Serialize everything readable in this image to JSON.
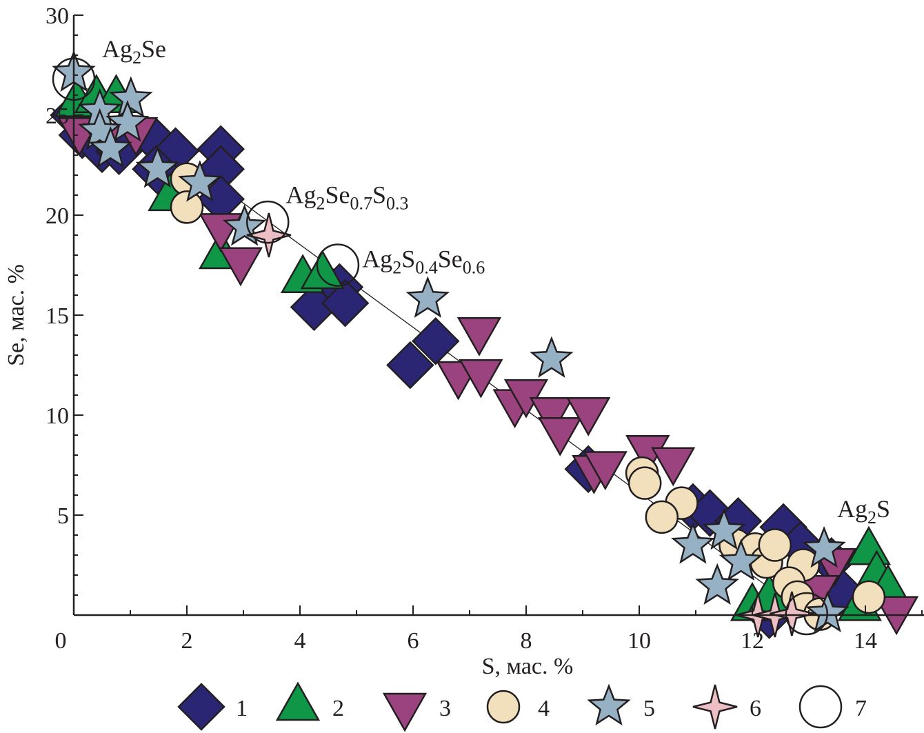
{
  "chart_data": {
    "type": "scatter",
    "title": "",
    "xlabel": "S, мас. %",
    "ylabel": "Se, мас. %",
    "xlim": [
      0,
      15
    ],
    "ylim": [
      0,
      30
    ],
    "xticks": [
      0,
      2,
      4,
      6,
      8,
      10,
      12,
      14
    ],
    "yticks": [
      5,
      10,
      15,
      20,
      25,
      30
    ],
    "grid": false,
    "legend_position": "bottom",
    "trend_line": {
      "from": [
        0,
        26.8
      ],
      "to": [
        12.96,
        0
      ]
    },
    "annotations": [
      {
        "text": "Ag",
        "sub1": "2",
        "text2": "Se",
        "sub2": "",
        "text3": "",
        "sub3": "",
        "at": [
          0.5,
          27.9
        ]
      },
      {
        "text": "Ag",
        "sub1": "2",
        "text2": "Se",
        "sub2": "0.7",
        "text3": "S",
        "sub3": "0.3",
        "at": [
          3.75,
          20.6
        ]
      },
      {
        "text": "Ag",
        "sub1": "2",
        "text2": "S",
        "sub2": "0.4",
        "text3": "Se",
        "sub3": "0.6",
        "at": [
          5.1,
          17.4
        ]
      },
      {
        "text": "Ag",
        "sub1": "2",
        "text2": "S",
        "sub2": "",
        "text3": "",
        "sub3": "",
        "at": [
          13.5,
          4.9
        ]
      }
    ],
    "series": [
      {
        "name": "1",
        "marker": "diamond",
        "color": "#2b2673",
        "points": [
          [
            0,
            25
          ],
          [
            0.15,
            24
          ],
          [
            0.5,
            23.3
          ],
          [
            0.8,
            23.2
          ],
          [
            1.45,
            23.7
          ],
          [
            1.8,
            23.2
          ],
          [
            1.45,
            22.3
          ],
          [
            1.7,
            21.6
          ],
          [
            2.6,
            23.3
          ],
          [
            2.6,
            22.3
          ],
          [
            2.6,
            20.8
          ],
          [
            4.7,
            16.4
          ],
          [
            4.25,
            15.4
          ],
          [
            4.8,
            15.6
          ],
          [
            5.95,
            12.5
          ],
          [
            6.4,
            13.7
          ],
          [
            9.1,
            7.3
          ],
          [
            10.95,
            5.4
          ],
          [
            11.25,
            5.1
          ],
          [
            11.75,
            4.7
          ],
          [
            12.55,
            4.4
          ],
          [
            12.85,
            3.5
          ],
          [
            13.4,
            2.7
          ],
          [
            13.6,
            1.1
          ],
          [
            12.3,
            0
          ]
        ]
      },
      {
        "name": "2",
        "marker": "triangle-up",
        "color": "#0f9647",
        "points": [
          [
            0.05,
            25.6
          ],
          [
            0.4,
            25.8
          ],
          [
            0.75,
            25.8
          ],
          [
            1.7,
            20.9
          ],
          [
            2.6,
            18
          ],
          [
            4.05,
            16.8
          ],
          [
            4.4,
            17
          ],
          [
            12,
            0.4
          ],
          [
            12.3,
            0.8
          ],
          [
            14.06,
            3.2
          ],
          [
            14.2,
            2
          ],
          [
            14.4,
            1.3
          ],
          [
            13.9,
            0.4
          ]
        ]
      },
      {
        "name": "3",
        "marker": "triangle-down",
        "color": "#9b437f",
        "points": [
          [
            0.1,
            24.2
          ],
          [
            0.55,
            23.9
          ],
          [
            1.1,
            24.2
          ],
          [
            2.6,
            19.4
          ],
          [
            2.95,
            17.7
          ],
          [
            7.17,
            14.2
          ],
          [
            6.8,
            12
          ],
          [
            7.2,
            12.1
          ],
          [
            7.8,
            10.6
          ],
          [
            8,
            11.1
          ],
          [
            8.45,
            10.2
          ],
          [
            8.6,
            9.2
          ],
          [
            9.1,
            10.2
          ],
          [
            9.2,
            7.3
          ],
          [
            9.4,
            7.5
          ],
          [
            10.15,
            8.3
          ],
          [
            10.6,
            7.7
          ],
          [
            13.45,
            2.65
          ],
          [
            13.15,
            1.3
          ],
          [
            14.55,
            0.25
          ]
        ]
      },
      {
        "name": "4",
        "marker": "circle",
        "color": "#f2e0bc",
        "points": [
          [
            2,
            21.8
          ],
          [
            2,
            20.4
          ],
          [
            10.05,
            7.1
          ],
          [
            10.1,
            6.6
          ],
          [
            10.75,
            5.6
          ],
          [
            10.4,
            4.9
          ],
          [
            11.7,
            3.5
          ],
          [
            12.05,
            3.3
          ],
          [
            12.25,
            2.65
          ],
          [
            12.4,
            3.5
          ],
          [
            12.9,
            2.5
          ],
          [
            12.65,
            1.6
          ],
          [
            12.8,
            0.9
          ],
          [
            13.2,
            0.05
          ],
          [
            14.06,
            0.9
          ]
        ]
      },
      {
        "name": "5",
        "marker": "star5",
        "color": "#97b1c4",
        "points": [
          [
            0,
            27.1
          ],
          [
            0.46,
            25.2
          ],
          [
            1.01,
            25.8
          ],
          [
            0.95,
            24.6
          ],
          [
            0.46,
            24.2
          ],
          [
            0.65,
            23.3
          ],
          [
            1.48,
            22.3
          ],
          [
            2.23,
            21.6
          ],
          [
            3.02,
            19.4
          ],
          [
            6.26,
            15.8
          ],
          [
            8.45,
            12.8
          ],
          [
            10.95,
            3.5
          ],
          [
            11.5,
            4.2
          ],
          [
            11.8,
            2.65
          ],
          [
            11.38,
            1.45
          ],
          [
            13.27,
            3.3
          ],
          [
            13.33,
            0.07
          ]
        ]
      },
      {
        "name": "6",
        "marker": "star4",
        "color": "#ebbfc3",
        "points": [
          [
            3.45,
            19
          ],
          [
            12.1,
            0
          ],
          [
            12.4,
            0
          ],
          [
            12.7,
            0.07
          ]
        ]
      },
      {
        "name": "7",
        "marker": "open-circle",
        "color": "#ffffff",
        "points": [
          [
            0,
            26.8
          ],
          [
            3.43,
            19.65
          ],
          [
            4.67,
            17.5
          ],
          [
            12.96,
            0.07
          ]
        ]
      }
    ]
  }
}
